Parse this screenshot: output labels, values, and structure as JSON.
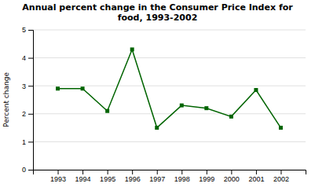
{
  "chart_data": {
    "type": "line",
    "title": "Annual percent change in the Consumer Price Index for\nfood, 1993-2002",
    "y_label": "Percent change",
    "x": [
      1993,
      1994,
      1995,
      1996,
      1997,
      1998,
      1999,
      2000,
      2001,
      2002
    ],
    "values": [
      2.9,
      2.9,
      2.1,
      4.3,
      1.5,
      2.3,
      2.2,
      1.9,
      2.85,
      1.5
    ],
    "color": "#006400",
    "marker": "square",
    "xlim": [
      1992,
      2003
    ],
    "xticks": [
      1993,
      1994,
      1995,
      1996,
      1997,
      1998,
      1999,
      2000,
      2001,
      2002
    ],
    "ylim": [
      0,
      5
    ],
    "yticks": [
      0,
      1,
      2,
      3,
      4,
      5
    ],
    "grid": true
  }
}
